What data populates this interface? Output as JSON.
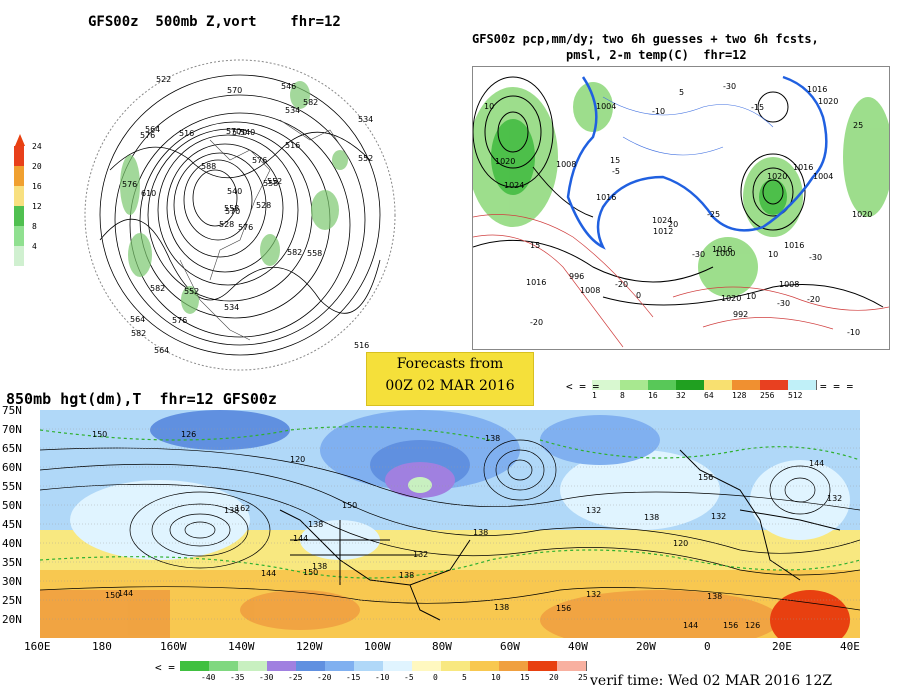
{
  "panels": {
    "top_left": {
      "title": "GFS00z  500mb Z,vort    fhr=12",
      "contour_labels": [
        "576",
        "576",
        "570",
        "564",
        "558",
        "552",
        "546",
        "540",
        "534",
        "528",
        "522",
        "516",
        "610",
        "534",
        "528",
        "516",
        "564",
        "570",
        "576",
        "582",
        "588",
        "582",
        "576",
        "570",
        "552",
        "558",
        "564",
        "570",
        "576",
        "582",
        "552",
        "558",
        "534",
        "540",
        "516",
        "582"
      ],
      "legend_labels": [
        "24",
        "20",
        "16",
        "12",
        "8",
        "4"
      ],
      "legend_colors": [
        "#e8401a",
        "#f0a030",
        "#f8e080",
        "#50c050",
        "#90e090",
        "#d0f0d0"
      ]
    },
    "top_right": {
      "title_line1": "GFS00z pcp,mm/dy; two 6h guesses + two 6h fcsts,",
      "title_line2": "pmsl, 2-m temp(C)  fhr=12",
      "pressure_labels": [
        "992",
        "1004",
        "996",
        "1008",
        "1016",
        "1020",
        "1020",
        "1016",
        "1012",
        "1008",
        "1016",
        "1020",
        "1024",
        "1016",
        "1020",
        "1016",
        "1024",
        "1020",
        "1016",
        "1004",
        "1008",
        "1000"
      ],
      "temp_labels": [
        "-20",
        "-30",
        "-25",
        "-30",
        "-10",
        "-30",
        "-20",
        "-15",
        "-30",
        "-20",
        "-10",
        "-5",
        "0",
        "5",
        "10",
        "15",
        "10",
        "15",
        "20",
        "25",
        "10"
      ],
      "legend_labels": [
        "1",
        "8",
        "16",
        "32",
        "64",
        "128",
        "256",
        "512"
      ],
      "legend_colors": [
        "#d8f8d0",
        "#a8e890",
        "#58c858",
        "#20a020",
        "#f8e070",
        "#f09030",
        "#e84020",
        "#c0f0f8"
      ]
    },
    "forecast_box": {
      "line1": "Forecasts from",
      "line2": "00Z 02 MAR 2016"
    },
    "bottom": {
      "title": "850mb hgt(dm),T  fhr=12 GFS00z",
      "lat_labels": [
        "75N",
        "70N",
        "65N",
        "60N",
        "55N",
        "50N",
        "45N",
        "40N",
        "35N",
        "30N",
        "25N",
        "20N"
      ],
      "lon_labels": [
        "160E",
        "180",
        "160W",
        "140W",
        "120W",
        "100W",
        "80W",
        "60W",
        "40W",
        "20W",
        "0",
        "20E",
        "40E"
      ],
      "height_labels": [
        "132",
        "138",
        "126",
        "120",
        "126",
        "120",
        "138",
        "144",
        "150",
        "138",
        "132",
        "138",
        "150",
        "144",
        "138",
        "132",
        "138",
        "132",
        "144",
        "150",
        "156",
        "162",
        "156",
        "144",
        "138",
        "132",
        "138",
        "144",
        "156",
        "150",
        "138"
      ],
      "legend_labels": [
        "-40",
        "-35",
        "-30",
        "-25",
        "-20",
        "-15",
        "-10",
        "-5",
        "0",
        "5",
        "10",
        "15",
        "20",
        "25"
      ],
      "legend_colors": [
        "#40c040",
        "#80d880",
        "#c8f0c0",
        "#a080e0",
        "#6090e0",
        "#80b0f0",
        "#b0d8f8",
        "#e0f4ff",
        "#fff8c0",
        "#f8e880",
        "#f8c850",
        "#f0a040",
        "#e84010",
        "#f8b0a0"
      ],
      "verif": "verif time: Wed 02 MAR 2016 12Z"
    }
  }
}
